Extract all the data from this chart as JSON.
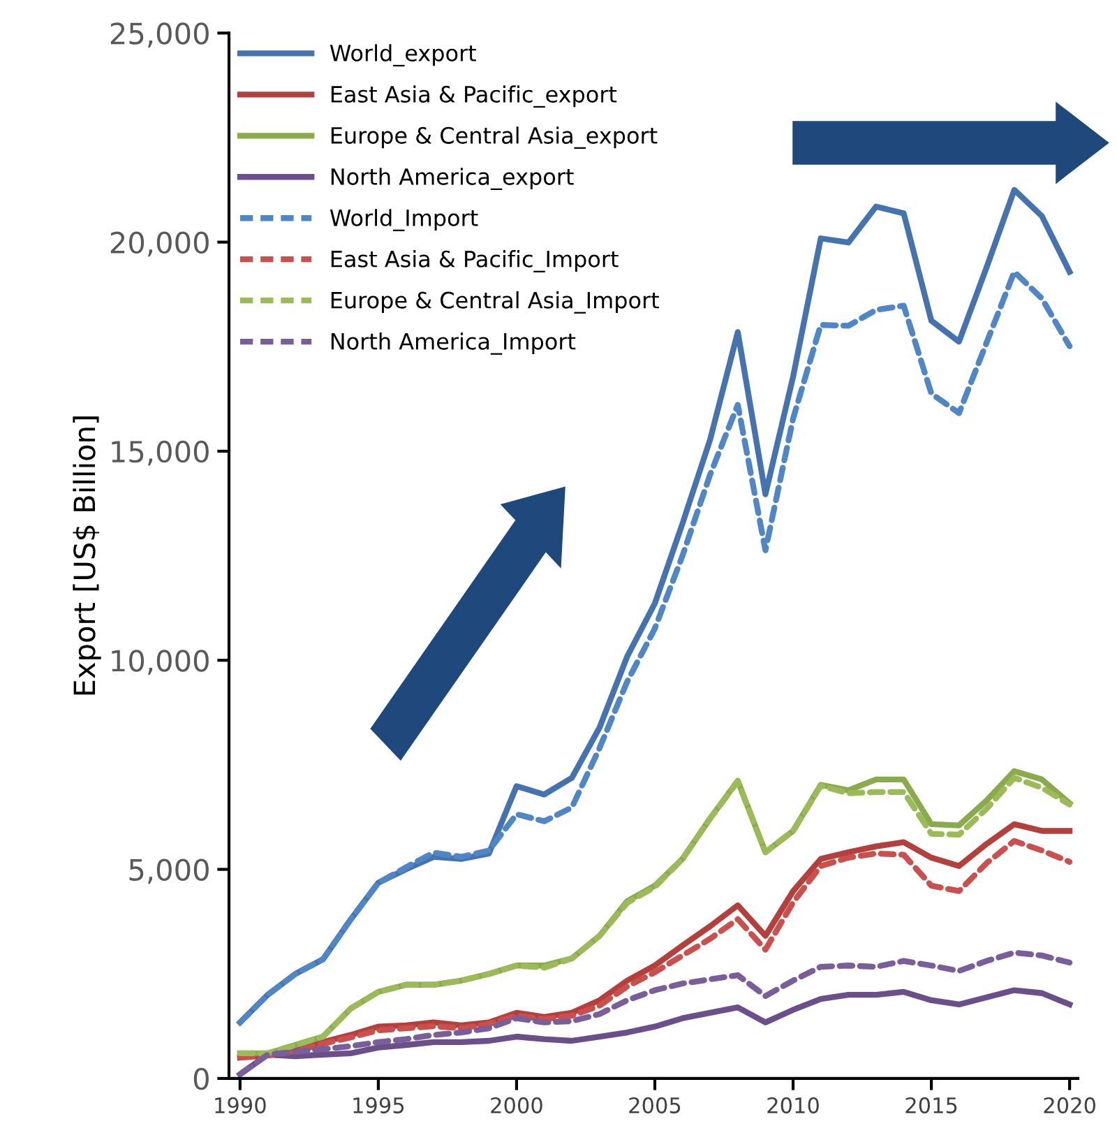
{
  "chart_data": {
    "type": "line",
    "ylabel": "Export [US$ Billion]",
    "x": [
      1990,
      1991,
      1992,
      1993,
      1994,
      1995,
      1996,
      1997,
      1998,
      1999,
      2000,
      2001,
      2002,
      2003,
      2004,
      2005,
      2006,
      2007,
      2008,
      2009,
      2010,
      2011,
      2012,
      2013,
      2014,
      2015,
      2016,
      2017,
      2018,
      2019,
      2020
    ],
    "series": [
      {
        "name": "World_export",
        "color": "#4573b0",
        "line_style": "solid",
        "values": [
          1340,
          2000,
          2500,
          2850,
          3800,
          4680,
          5000,
          5300,
          5250,
          5380,
          6990,
          6790,
          7190,
          8390,
          10090,
          11360,
          13270,
          15280,
          17850,
          13970,
          16780,
          20090,
          19990,
          20850,
          20690,
          18120,
          17620,
          19400,
          21250,
          20620,
          19290
        ]
      },
      {
        "name": "East Asia & Pacific_export",
        "color": "#b3403d",
        "line_style": "solid",
        "values": [
          500,
          550,
          670,
          870,
          1040,
          1240,
          1270,
          1340,
          1270,
          1340,
          1570,
          1470,
          1570,
          1870,
          2340,
          2700,
          3180,
          3640,
          4140,
          3410,
          4480,
          5250,
          5410,
          5550,
          5650,
          5280,
          5080,
          5610,
          6080,
          5920,
          5920
        ]
      },
      {
        "name": "Europe & Central Asia_export",
        "color": "#8aab4b",
        "line_style": "solid",
        "values": [
          600,
          600,
          800,
          1000,
          1670,
          2070,
          2240,
          2240,
          2340,
          2500,
          2700,
          2700,
          2870,
          3410,
          4240,
          4610,
          5250,
          6220,
          7120,
          5410,
          5920,
          7020,
          6890,
          7150,
          7150,
          6080,
          6050,
          6650,
          7350,
          7150,
          6580
        ]
      },
      {
        "name": "North America_export",
        "color": "#6a4f8a",
        "line_style": "solid",
        "values": [
          100,
          570,
          530,
          570,
          600,
          740,
          800,
          870,
          870,
          900,
          1000,
          940,
          900,
          1000,
          1100,
          1240,
          1440,
          1570,
          1700,
          1340,
          1640,
          1900,
          2000,
          2000,
          2070,
          1870,
          1770,
          1940,
          2110,
          2040,
          1770
        ]
      },
      {
        "name": "World_Import",
        "color": "#4f86c6",
        "line_style": "dashed",
        "values": [
          1340,
          2000,
          2500,
          2850,
          3800,
          4680,
          5050,
          5400,
          5300,
          5450,
          6320,
          6150,
          6480,
          7900,
          9490,
          10760,
          12500,
          14440,
          16110,
          12630,
          15780,
          18020,
          18000,
          18380,
          18480,
          16380,
          15910,
          17600,
          19290,
          18650,
          17510
        ]
      },
      {
        "name": "East Asia & Pacific_Import",
        "color": "#c9504d",
        "line_style": "dashed",
        "values": [
          500,
          550,
          650,
          830,
          980,
          1150,
          1200,
          1250,
          1200,
          1300,
          1500,
          1420,
          1500,
          1740,
          2200,
          2540,
          2940,
          3340,
          3810,
          3080,
          4210,
          5080,
          5280,
          5380,
          5350,
          4610,
          4480,
          5150,
          5680,
          5450,
          5180
        ]
      },
      {
        "name": "Europe & Central Asia_Import",
        "color": "#9bbb59",
        "line_style": "dashed",
        "values": [
          600,
          600,
          800,
          1000,
          1670,
          2070,
          2240,
          2240,
          2340,
          2500,
          2700,
          2650,
          2870,
          3410,
          4200,
          4580,
          5250,
          6220,
          7100,
          5410,
          5920,
          7000,
          6820,
          6850,
          6850,
          5850,
          5830,
          6450,
          7190,
          6950,
          6550
        ]
      },
      {
        "name": "North America_Import",
        "color": "#7a5e9a",
        "line_style": "dashed",
        "values": [
          100,
          570,
          640,
          700,
          770,
          870,
          940,
          1040,
          1100,
          1200,
          1440,
          1340,
          1370,
          1540,
          1870,
          2110,
          2270,
          2370,
          2470,
          1970,
          2340,
          2670,
          2700,
          2670,
          2810,
          2700,
          2570,
          2810,
          3010,
          2940,
          2770
        ]
      }
    ],
    "xlim": [
      1989.6,
      2020.3
    ],
    "xticks": [
      1990,
      1995,
      2000,
      2005,
      2010,
      2015,
      2020
    ],
    "ylim": [
      0,
      25000
    ],
    "yticks": [
      {
        "value": 0,
        "label": "0"
      },
      {
        "value": 5000,
        "label": "5,000"
      },
      {
        "value": 10000,
        "label": "10,000"
      },
      {
        "value": 15000,
        "label": "15,000"
      },
      {
        "value": 20000,
        "label": "20,000"
      },
      {
        "value": 25000,
        "label": "25,000"
      }
    ],
    "grid": false,
    "legend": "top left",
    "marker": "none"
  }
}
